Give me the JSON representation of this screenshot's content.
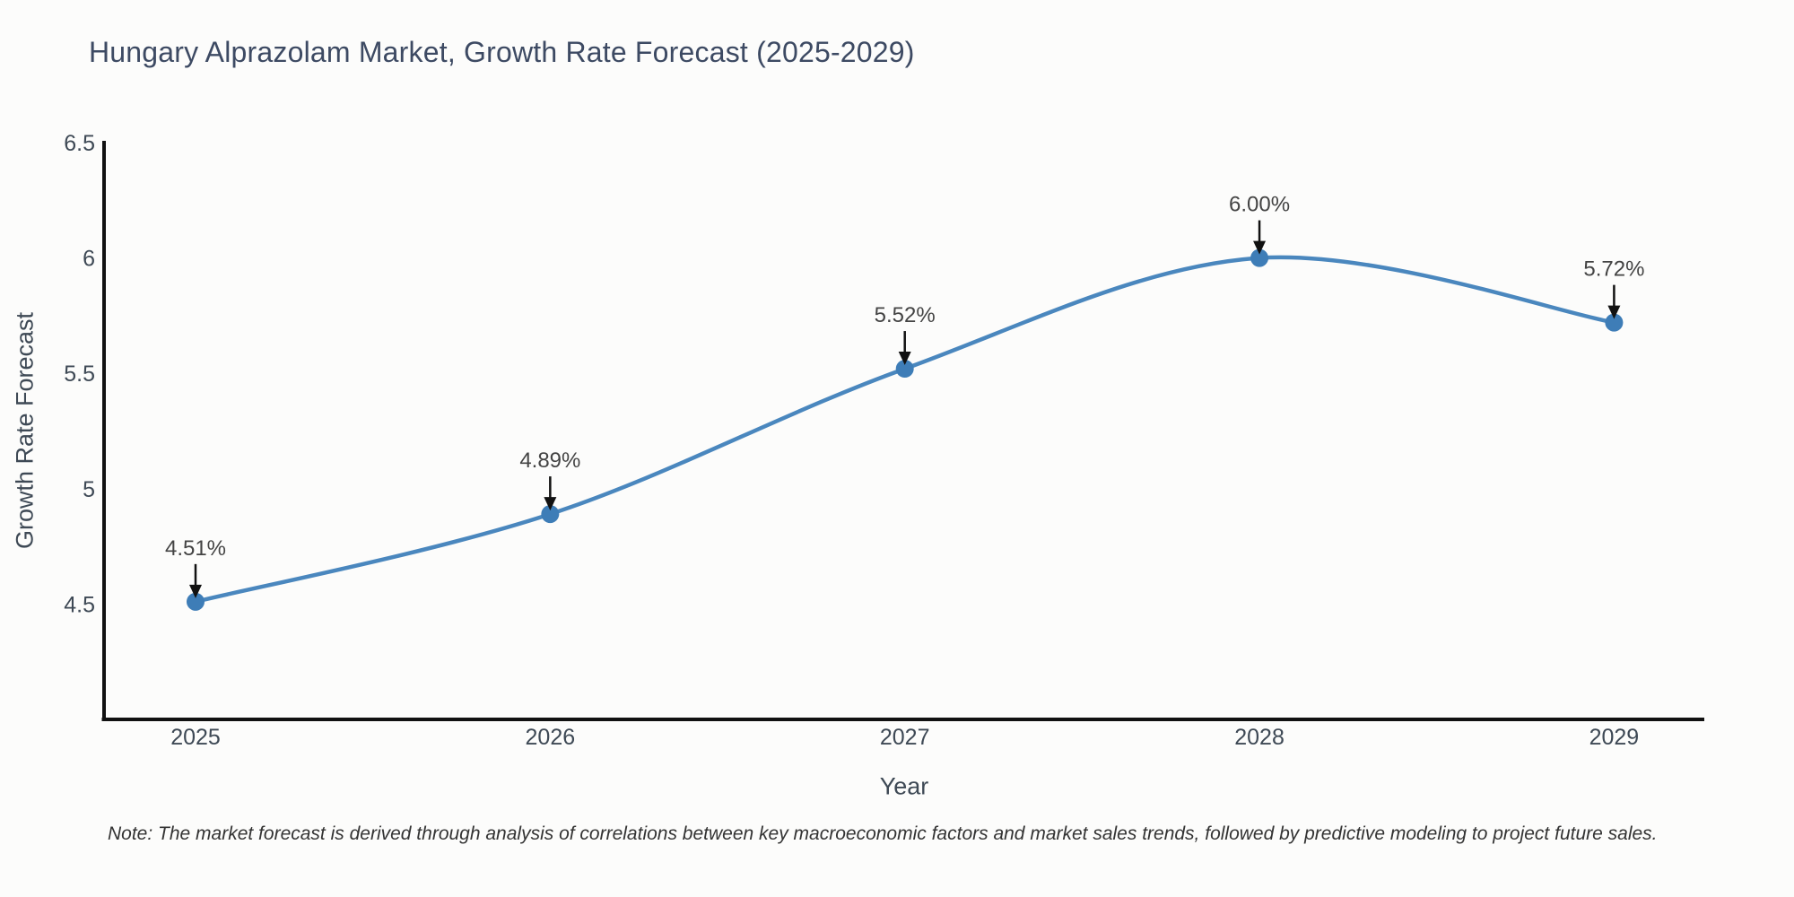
{
  "title": "Hungary Alprazolam Market, Growth Rate Forecast (2025-2029)",
  "note": "Note: The market forecast is derived through analysis of correlations between key macroeconomic factors and market sales trends, followed by predictive modeling to project future sales.",
  "chart_data": {
    "type": "line",
    "title": "Hungary Alprazolam Market, Growth Rate Forecast (2025-2029)",
    "xlabel": "Year",
    "ylabel": "Growth Rate Forecast",
    "categories": [
      "2025",
      "2026",
      "2027",
      "2028",
      "2029"
    ],
    "values": [
      4.51,
      4.89,
      5.52,
      6.0,
      5.72
    ],
    "point_labels": [
      "4.51%",
      "4.89%",
      "5.52%",
      "6.00%",
      "5.72%"
    ],
    "yticks": [
      "4.5",
      "5",
      "5.5",
      "6",
      "6.5"
    ],
    "ytick_values": [
      4.5,
      5.0,
      5.5,
      6.0,
      6.5
    ],
    "ylim": [
      4.0,
      6.5
    ],
    "grid": false,
    "legend": "none",
    "smooth": true,
    "annotation_style": "value-label-with-down-arrow"
  },
  "colors": {
    "background": "#fcfcfb",
    "line": "#4a87be",
    "marker": "#3e7db7",
    "axis": "#111111",
    "title_text": "#3d4a63",
    "tick_text": "#3e4955",
    "annotation_text": "#444444",
    "arrow": "#111111",
    "note_text": "#333333"
  }
}
